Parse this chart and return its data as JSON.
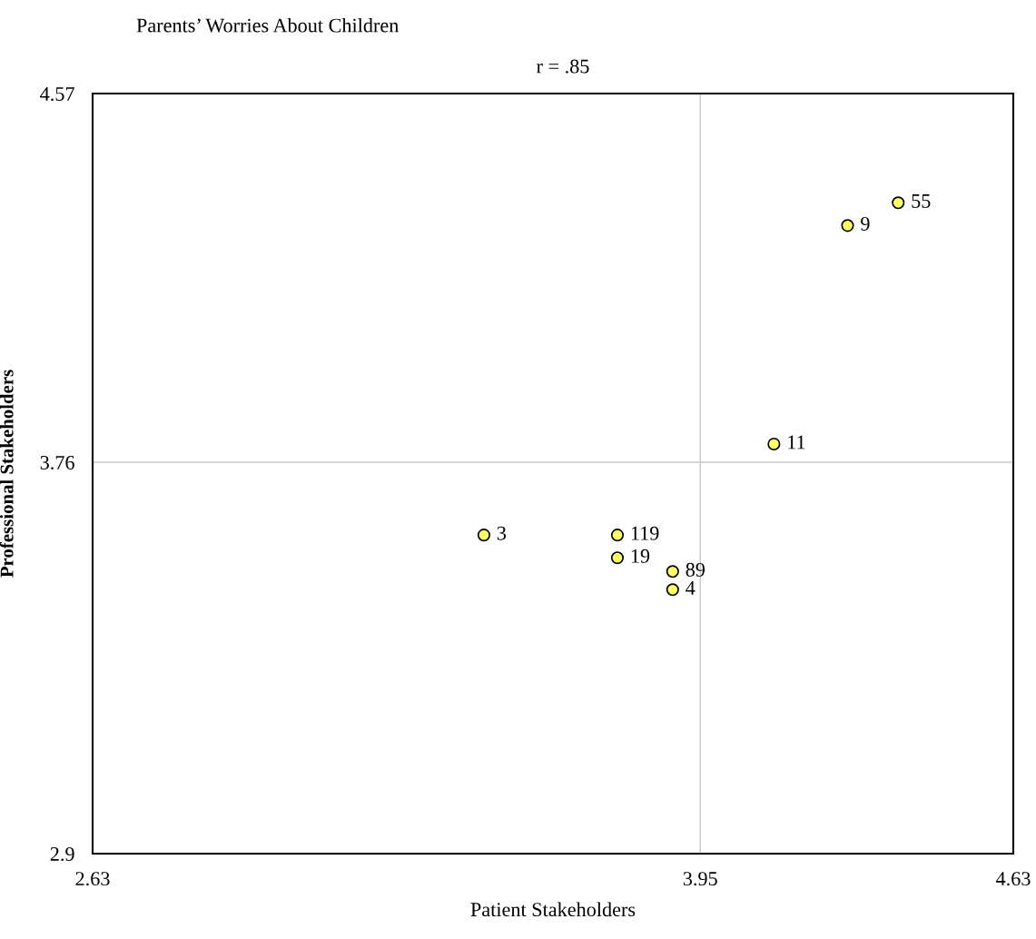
{
  "chart_data": {
    "type": "scatter",
    "title": "Parents’ Worries About Children",
    "subtitle": "r = .85",
    "xlabel": "Patient Stakeholders",
    "ylabel": "Professional Stakeholders",
    "x": [
      4.38,
      4.27,
      4.11,
      3.48,
      3.77,
      3.77,
      3.89,
      3.89
    ],
    "values": [
      4.33,
      4.28,
      3.8,
      3.6,
      3.6,
      3.55,
      3.52,
      3.48
    ],
    "color": "#ffff66",
    "marker": "circle",
    "xlim": [
      2.63,
      4.63
    ],
    "ylim": [
      2.9,
      4.57
    ],
    "xticks": [
      2.63,
      3.95,
      4.63
    ],
    "yticks": [
      2.9,
      3.76,
      4.57
    ],
    "grid": false,
    "ref_lines": [
      {
        "axis": "x",
        "value": 3.95,
        "color": "#c8c8c8"
      },
      {
        "axis": "y",
        "value": 3.76,
        "color": "#c8c8c8"
      }
    ],
    "annotations": [
      {
        "text": "55",
        "x": 4.38,
        "y": 4.33
      },
      {
        "text": "9",
        "x": 4.27,
        "y": 4.28
      },
      {
        "text": "11",
        "x": 4.11,
        "y": 3.8
      },
      {
        "text": "3",
        "x": 3.48,
        "y": 3.6
      },
      {
        "text": "119",
        "x": 3.77,
        "y": 3.6
      },
      {
        "text": "19",
        "x": 3.77,
        "y": 3.55
      },
      {
        "text": "89",
        "x": 3.89,
        "y": 3.52
      },
      {
        "text": "4",
        "x": 3.89,
        "y": 3.48
      }
    ]
  }
}
